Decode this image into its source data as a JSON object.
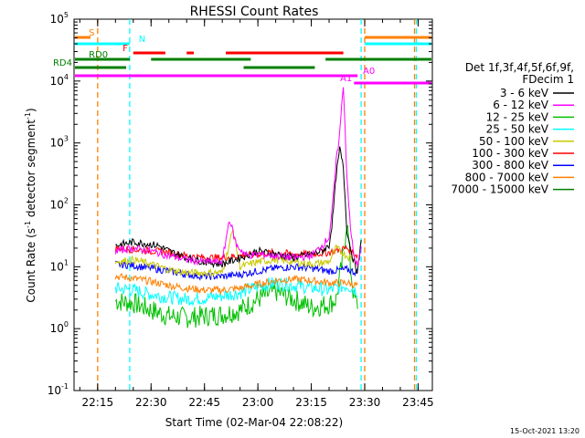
{
  "chart_data": {
    "type": "line",
    "title": "RHESSI Count Rates",
    "xlabel": "Start Time (02-Mar-04 22:08:22)",
    "ylabel_parts": [
      "Count Rate (s",
      "-1",
      " detector segment",
      "-1",
      ")"
    ],
    "yscale": "log",
    "ylim": [
      0.1,
      100000
    ],
    "xlim": [
      "22:08:22",
      "23:49:00"
    ],
    "x_ticks": [
      "22:15",
      "22:30",
      "22:45",
      "23:00",
      "23:15",
      "23:30",
      "23:45"
    ],
    "y_ticks": [
      {
        "value": 0.1,
        "base": "10",
        "exp": "-1"
      },
      {
        "value": 1,
        "base": "10",
        "exp": "0"
      },
      {
        "value": 10,
        "base": "10",
        "exp": "1"
      },
      {
        "value": 100,
        "base": "10",
        "exp": "2"
      },
      {
        "value": 1000,
        "base": "10",
        "exp": "3"
      },
      {
        "value": 10000,
        "base": "10",
        "exp": "4"
      },
      {
        "value": 100000,
        "base": "10",
        "exp": "5"
      }
    ],
    "grid": false,
    "legend_position": "right",
    "legend_header": [
      "Det 1f,3f,4f,5f,6f,9f,",
      "FDecim 1"
    ],
    "series": [
      {
        "name": "3 - 6 keV",
        "color": "#000000",
        "x": [
          "22:20",
          "22:25",
          "22:28",
          "22:32",
          "22:35",
          "22:40",
          "22:45",
          "22:50",
          "22:55",
          "23:00",
          "23:05",
          "23:10",
          "23:15",
          "23:18",
          "23:20",
          "23:21",
          "23:22",
          "23:23",
          "23:24",
          "23:25",
          "23:26",
          "23:27",
          "23:28",
          "23:29"
        ],
        "y": [
          22,
          25,
          24,
          22,
          18,
          14,
          12,
          11,
          14,
          18,
          16,
          14,
          16,
          18,
          22,
          60,
          300,
          800,
          400,
          40,
          20,
          12,
          8,
          25
        ]
      },
      {
        "name": "6 - 12 keV",
        "color": "#ff00ff",
        "x": [
          "22:20",
          "22:25",
          "22:30",
          "22:35",
          "22:40",
          "22:45",
          "22:50",
          "22:52",
          "22:54",
          "22:57",
          "23:00",
          "23:05",
          "23:10",
          "23:15",
          "23:18",
          "23:20",
          "23:21",
          "23:22",
          "23:23",
          "23:24",
          "23:25",
          "23:26",
          "23:27",
          "23:28",
          "23:29"
        ],
        "y": [
          18,
          20,
          18,
          15,
          13,
          12,
          12,
          60,
          22,
          15,
          16,
          15,
          14,
          15,
          22,
          30,
          100,
          500,
          1500,
          9000,
          300,
          40,
          15,
          10,
          20
        ]
      },
      {
        "name": "12 - 25 keV",
        "color": "#00c000",
        "x": [
          "22:20",
          "22:25",
          "22:30",
          "22:35",
          "22:40",
          "22:45",
          "22:50",
          "22:55",
          "23:00",
          "23:05",
          "23:10",
          "23:15",
          "23:20",
          "23:22",
          "23:24",
          "23:25",
          "23:26",
          "23:27",
          "23:28"
        ],
        "y": [
          2.8,
          2.6,
          2.0,
          1.6,
          1.5,
          1.6,
          1.7,
          2.0,
          3.0,
          4.0,
          3.0,
          2.2,
          2.5,
          3.0,
          15,
          60,
          10,
          3,
          2.5
        ]
      },
      {
        "name": "25 - 50 keV",
        "color": "#00ffff",
        "x": [
          "22:20",
          "22:25",
          "22:30",
          "22:35",
          "22:40",
          "22:45",
          "22:50",
          "22:55",
          "23:00",
          "23:05",
          "23:10",
          "23:15",
          "23:20",
          "23:25",
          "23:28"
        ],
        "y": [
          4.5,
          4.2,
          3.6,
          3.2,
          3.0,
          3.1,
          3.4,
          3.8,
          4.8,
          5.5,
          5.0,
          4.6,
          4.2,
          5.0,
          4.0
        ]
      },
      {
        "name": "50 - 100 keV",
        "color": "#c8c800",
        "x": [
          "22:20",
          "22:25",
          "22:30",
          "22:35",
          "22:40",
          "22:45",
          "22:50",
          "22:53",
          "22:55",
          "23:00",
          "23:05",
          "23:10",
          "23:15",
          "23:20",
          "23:22",
          "23:25",
          "23:28"
        ],
        "y": [
          12,
          13,
          11,
          9,
          8,
          8,
          8,
          40,
          10,
          12,
          13,
          12,
          11,
          12,
          20,
          15,
          12
        ]
      },
      {
        "name": "100 - 300 keV",
        "color": "#ff0000",
        "x": [
          "22:20",
          "22:25",
          "22:30",
          "22:35",
          "22:40",
          "22:45",
          "22:50",
          "22:55",
          "23:00",
          "23:05",
          "23:10",
          "23:15",
          "23:20",
          "23:25",
          "23:28"
        ],
        "y": [
          20,
          19,
          18,
          17,
          15,
          14,
          14,
          15,
          16,
          17,
          16,
          16,
          17,
          20,
          15
        ]
      },
      {
        "name": "300 - 800 keV",
        "color": "#0000ff",
        "x": [
          "22:20",
          "22:25",
          "22:30",
          "22:35",
          "22:40",
          "22:45",
          "22:50",
          "22:55",
          "23:00",
          "23:05",
          "23:10",
          "23:15",
          "23:20",
          "23:25",
          "23:28"
        ],
        "y": [
          11,
          10.5,
          9.5,
          8.5,
          7.5,
          7,
          7,
          7.5,
          8.5,
          9.5,
          10,
          9.5,
          8.5,
          9,
          8
        ]
      },
      {
        "name": "800 - 7000 keV",
        "color": "#ff8000",
        "x": [
          "22:20",
          "22:25",
          "22:30",
          "22:35",
          "22:40",
          "22:45",
          "22:50",
          "22:55",
          "23:00",
          "23:05",
          "23:10",
          "23:15",
          "23:20",
          "23:25",
          "23:28"
        ],
        "y": [
          7,
          6.5,
          5.8,
          5.0,
          4.5,
          4.2,
          4.2,
          4.5,
          5.2,
          6.0,
          6.3,
          6.0,
          5.5,
          5.5,
          5.0
        ]
      },
      {
        "name": "7000 - 15000 keV",
        "color": "#008000",
        "x": [],
        "y": []
      }
    ],
    "state_bars": [
      {
        "label": "S",
        "color": "#ff8000",
        "level": "S",
        "segments": [
          [
            "22:08:22",
            "22:13"
          ],
          [
            "23:30",
            "23:49"
          ]
        ]
      },
      {
        "label": "N",
        "color": "#00ffff",
        "level": "N",
        "segments": [
          [
            "22:08:22",
            "22:24"
          ],
          [
            "23:30",
            "23:49"
          ]
        ]
      },
      {
        "label": "F",
        "color": "#ff0000",
        "level": "F",
        "segments": [
          [
            "22:25",
            "22:34"
          ],
          [
            "22:40",
            "22:42"
          ],
          [
            "22:51",
            "23:24"
          ]
        ]
      },
      {
        "label": "RD0",
        "color": "#008000",
        "level": "RD0",
        "segments": [
          [
            "22:08:22",
            "22:24"
          ],
          [
            "22:30",
            "22:58"
          ],
          [
            "23:19",
            "23:49"
          ]
        ]
      },
      {
        "label": "RD4",
        "color": "#008000",
        "level": "RD4",
        "segments": [
          [
            "22:08:22",
            "22:23"
          ],
          [
            "22:56",
            "23:16"
          ]
        ]
      },
      {
        "label": "A0",
        "color": "#ff00ff",
        "level": "A0",
        "segments": [
          [
            "22:08:22",
            "23:28"
          ]
        ]
      },
      {
        "label": "A1",
        "color": "#ff00ff",
        "level": "A1",
        "segments": [
          [
            "23:27",
            "23:49"
          ]
        ]
      }
    ],
    "vertical_markers": [
      {
        "time": "22:08:22",
        "color": "#00ffff"
      },
      {
        "time": "22:15",
        "color": "#ff8000"
      },
      {
        "time": "22:24",
        "color": "#00ffff"
      },
      {
        "time": "23:29",
        "color": "#00ffff"
      },
      {
        "time": "23:30",
        "color": "#ff8000"
      },
      {
        "time": "23:44",
        "color": "#ff8000"
      },
      {
        "time": "23:44:30",
        "color": "#00ffff"
      }
    ]
  },
  "footer": {
    "timestamp": "15-Oct-2021 13:20"
  }
}
